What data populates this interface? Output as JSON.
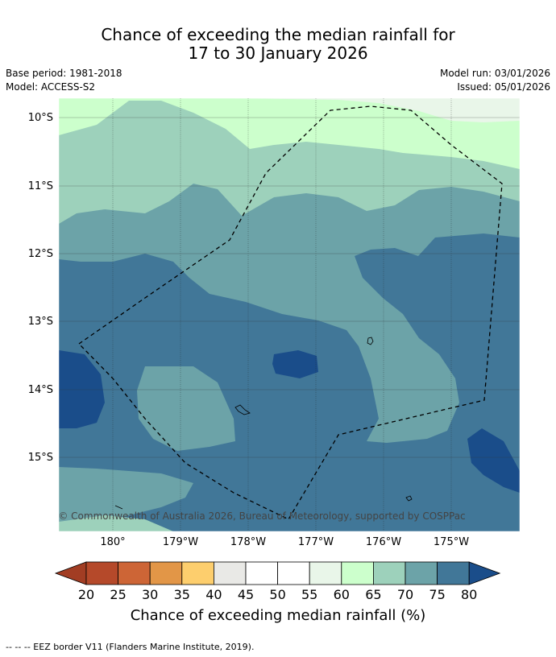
{
  "header": {
    "title_line1": "Chance of exceeding the median rainfall for",
    "title_line2": "17 to 30 January 2026",
    "base_period": "Base period: 1981-2018",
    "model": "Model: ACCESS-S2",
    "model_run": "Model run: 03/01/2026",
    "issued": "Issued: 05/01/2026"
  },
  "map": {
    "lat_labels": [
      "10°S",
      "11°S",
      "12°S",
      "13°S",
      "14°S",
      "15°S"
    ],
    "lon_labels": [
      "180°",
      "179°W",
      "178°W",
      "177°W",
      "176°W",
      "175°W"
    ],
    "copyright": "© Commonwealth of Australia 2026, Bureau of Meteorology, supported by COSPPac",
    "eez_border": "dashed"
  },
  "colorbar": {
    "ticks": [
      "20",
      "25",
      "30",
      "35",
      "40",
      "45",
      "50",
      "55",
      "60",
      "65",
      "70",
      "75",
      "80"
    ],
    "colors": [
      "#a23d23",
      "#b5492a",
      "#cd6536",
      "#e29647",
      "#fdce6d",
      "#e9e9e6",
      "#ffffff",
      "#ffffff",
      "#e9f6e9",
      "#ccffcc",
      "#9dd1bb",
      "#6ca3a8",
      "#417798",
      "#1a4d8a"
    ],
    "label": "Chance of exceeding median rainfall (%)"
  },
  "footer": {
    "note": "--  --  -- EEZ border V11 (Flanders Marine Institute, 2019)."
  }
}
